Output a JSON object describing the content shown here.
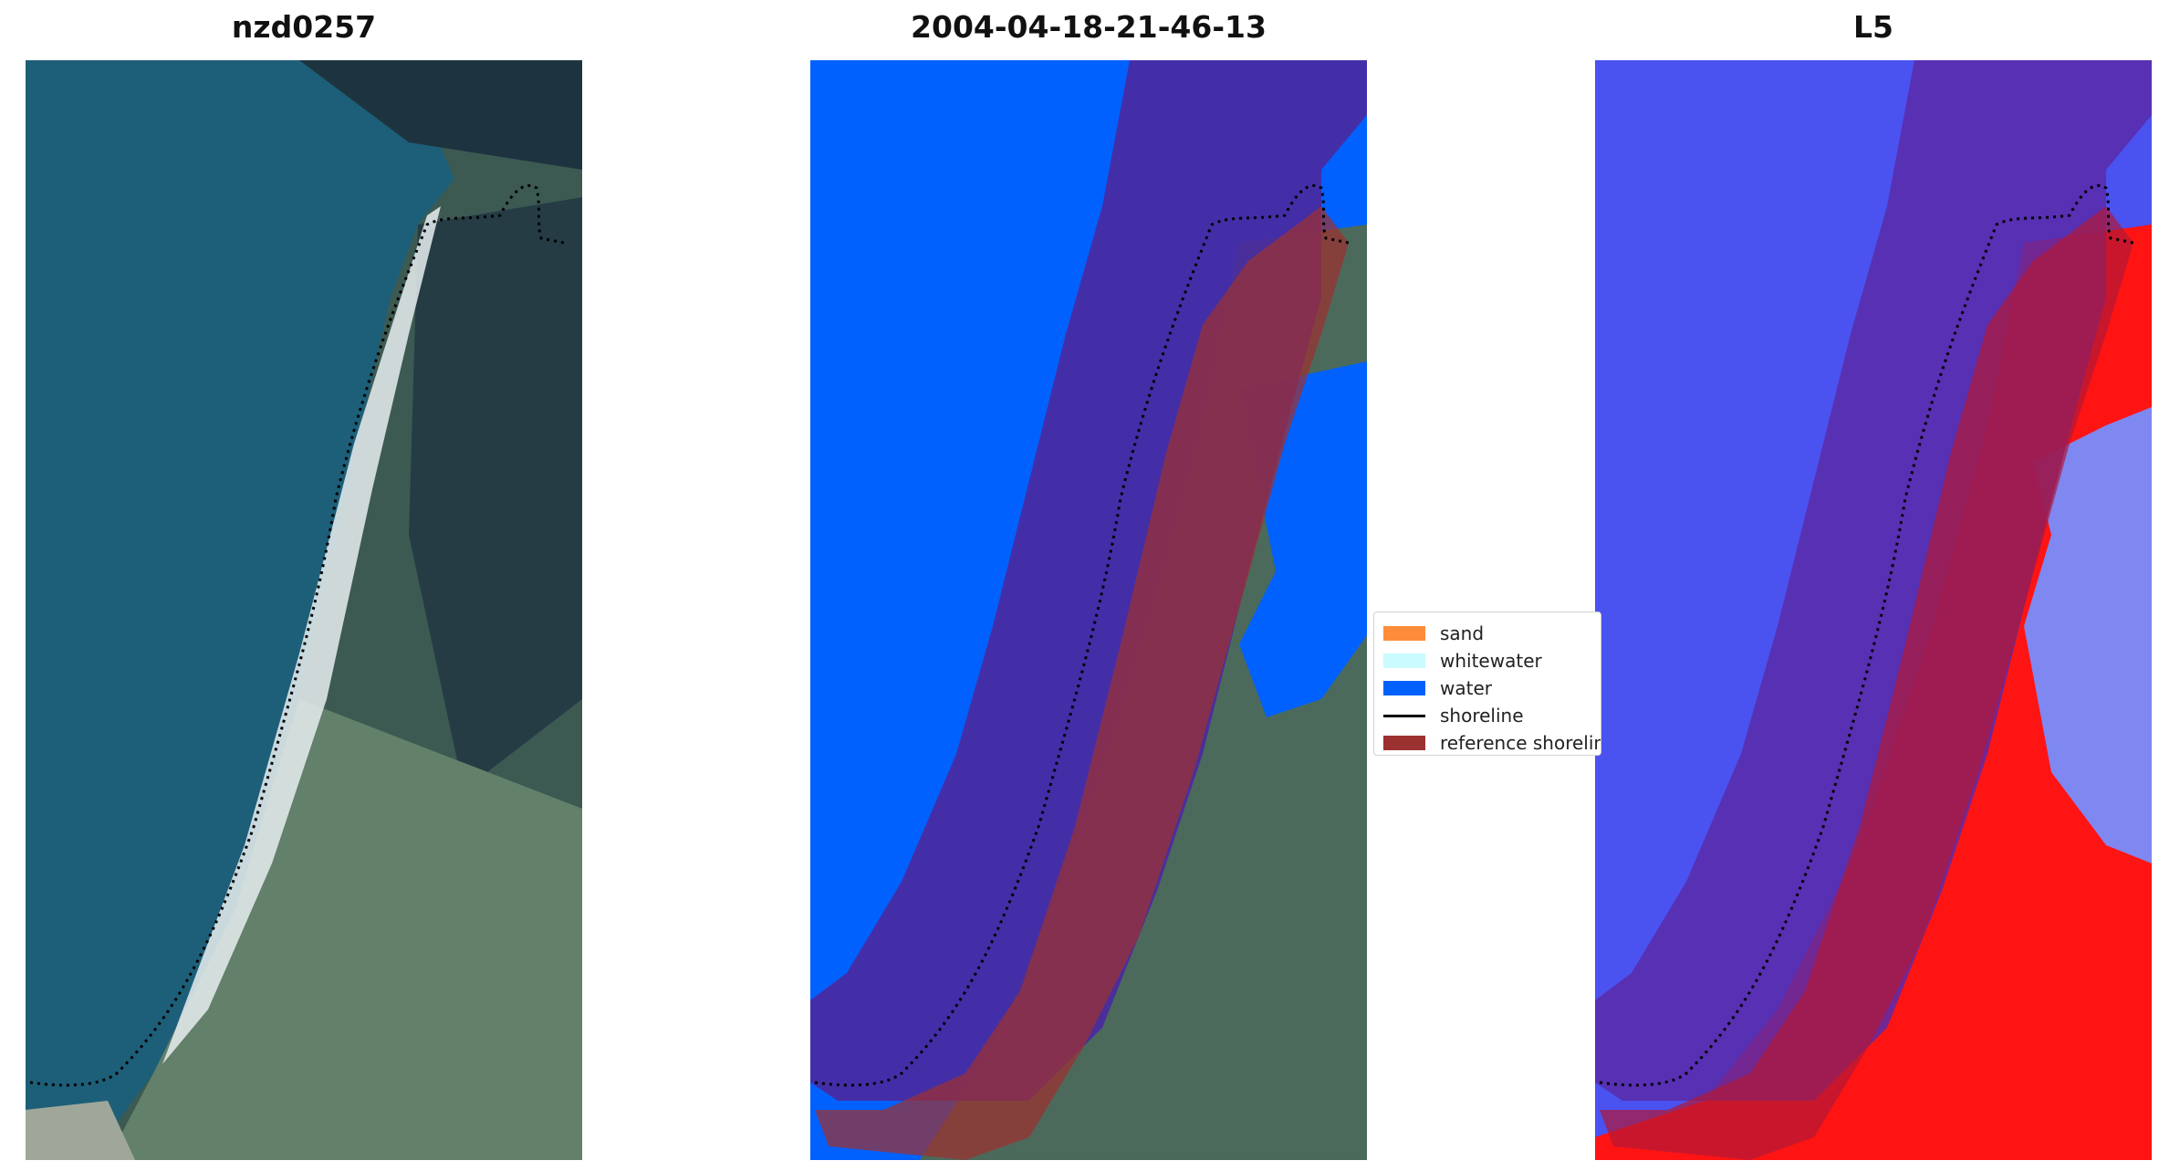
{
  "panels": [
    {
      "title": "nzd0257"
    },
    {
      "title": "2004-04-18-21-46-13"
    },
    {
      "title": "L5"
    }
  ],
  "legend": {
    "items": [
      {
        "label": "sand",
        "color": "#ff8c3a",
        "kind": "patch"
      },
      {
        "label": "whitewater",
        "color": "#c9fbff",
        "kind": "patch"
      },
      {
        "label": "water",
        "color": "#0061ff",
        "kind": "patch"
      },
      {
        "label": "shoreline",
        "color": "#000000",
        "kind": "line"
      },
      {
        "label": "reference shoreline",
        "color": "#9c3131",
        "kind": "patch"
      }
    ]
  },
  "colors": {
    "sea": "#1b5f7a",
    "land": "#2f4a45",
    "vegetation": "#5f7a63",
    "water_class": "#0061ff",
    "reference_buffer": "#9c3131",
    "index_negative": "#3b3bff",
    "index_positive": "#ff1010"
  }
}
